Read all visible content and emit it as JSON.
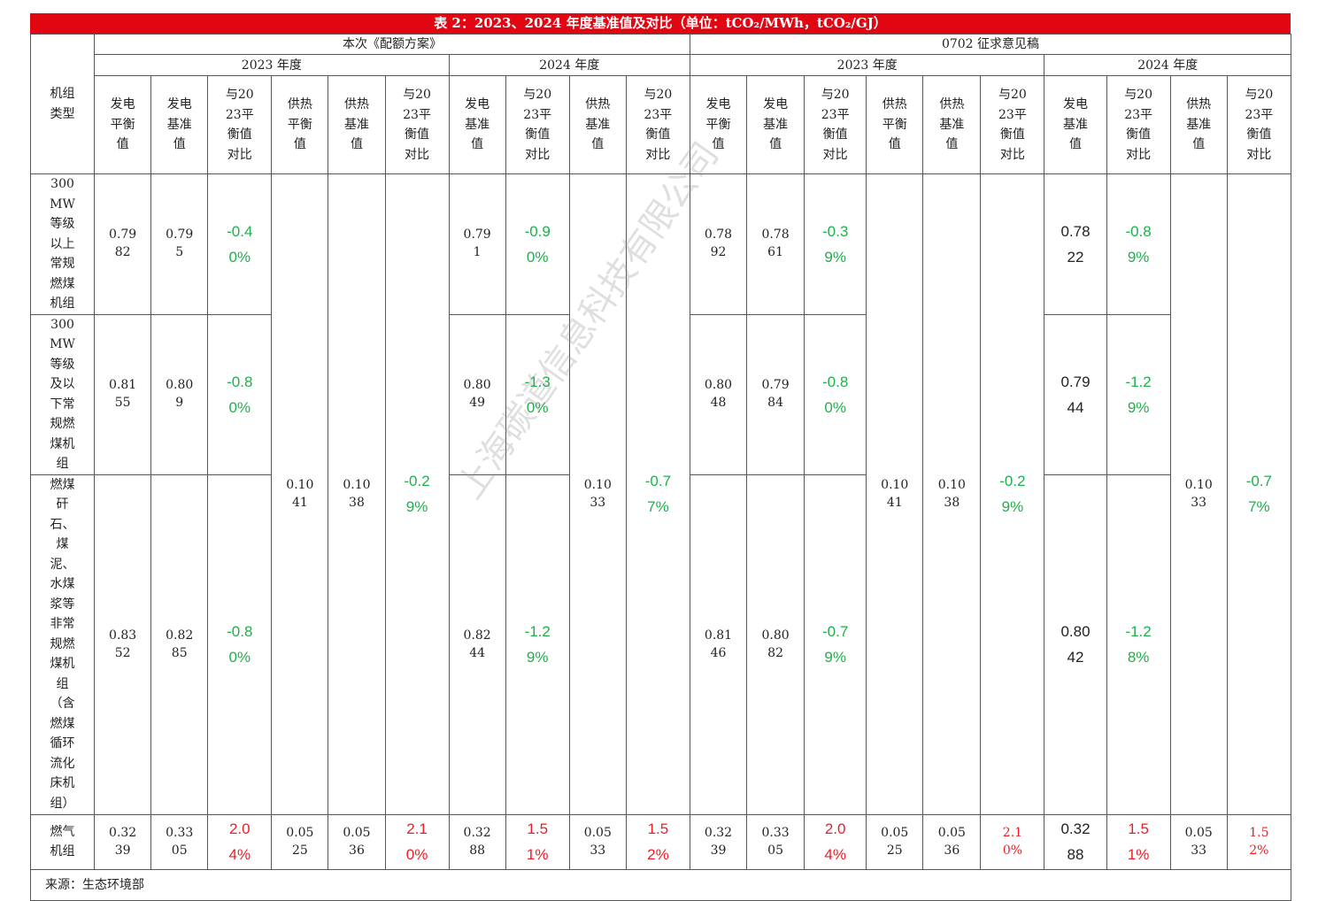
{
  "title": "表 2：2023、2024 年度基准值及对比（单位：tCO₂/MWh，tCO₂/GJ）",
  "header": {
    "row_label": "机组类型",
    "group_left": "本次《配额方案》",
    "group_right": "0702 征求意见稿",
    "year_2023": "2023 年度",
    "year_2024": "2024 年度",
    "col_gen_balance": "发电平衡值",
    "col_gen_base": "发电基准值",
    "col_cmp": "与2023平衡值对比",
    "col_heat_balance": "供热平衡值",
    "col_heat_base": "供热基准值"
  },
  "rows": {
    "r1": {
      "label": "300MW等级以上常规燃煤机组"
    },
    "r2": {
      "label": "300MW等级及以下常规燃煤机组"
    },
    "r3": {
      "label": "燃煤矸石、煤泥、水煤浆等非常规燃煤机组（含燃煤循环流化床机组）"
    },
    "r4": {
      "label": "燃气机组"
    }
  },
  "values": {
    "a_gen_bal": [
      "0.7982",
      "0.8155",
      "0.8352",
      "0.3239"
    ],
    "a_gen_base": [
      "0.795",
      "0.809",
      "0.8285",
      "0.3305"
    ],
    "a_cmp": [
      "-0.40%",
      "-0.80%",
      "-0.80%",
      "2.04%"
    ],
    "a_heat_bal": [
      "0.1041",
      "0.0525"
    ],
    "a_heat_base": [
      "0.1038",
      "0.0536"
    ],
    "a_heat_cmp": [
      "-0.29%",
      "2.10%"
    ],
    "b_gen_base": [
      "0.791",
      "0.8049",
      "0.8244",
      "0.3288"
    ],
    "b_cmp": [
      "-0.90%",
      "-1.30%",
      "-1.29%",
      "1.51%"
    ],
    "b_heat_base": [
      "0.1033",
      "0.0533"
    ],
    "b_heat_cmp": [
      "-0.77%",
      "1.52%"
    ],
    "c_gen_bal": [
      "0.7892",
      "0.8048",
      "0.8146",
      "0.3239"
    ],
    "c_gen_base": [
      "0.7861",
      "0.7984",
      "0.8082",
      "0.3305"
    ],
    "c_cmp": [
      "-0.39%",
      "-0.80%",
      "-0.79%",
      "2.04%"
    ],
    "c_heat_bal": [
      "0.1041",
      "0.0525"
    ],
    "c_heat_base": [
      "0.1038",
      "0.0536"
    ],
    "c_heat_cmp": [
      "-0.29%",
      "2.10%"
    ],
    "d_gen_base": [
      "0.7822",
      "0.7944",
      "0.8042",
      "0.3288"
    ],
    "d_cmp": [
      "-0.89%",
      "-1.29%",
      "-1.28%",
      "1.51%"
    ],
    "d_heat_base": [
      "0.1033",
      "0.0533"
    ],
    "d_heat_cmp": [
      "-0.77%",
      "1.52%"
    ]
  },
  "source": "来源：生态环境部",
  "watermark": "上海碳道信息科技有限公司",
  "colors": {
    "title_bg": "#e20613",
    "negative": "#1faf4b",
    "positive": "#ee1c25"
  }
}
